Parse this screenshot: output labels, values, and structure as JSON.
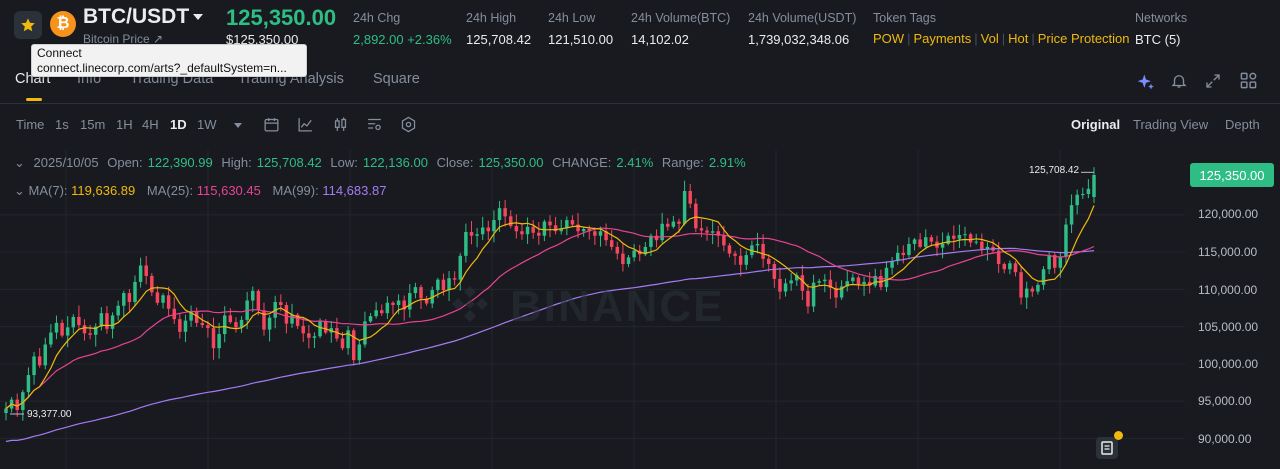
{
  "header": {
    "pair": "BTC/USDT",
    "subtitle": "Bitcoin Price",
    "last_price": "125,350.00",
    "last_price_usd": "$125,350.00",
    "stats": [
      {
        "label": "24h Chg",
        "value": "2,892.00 +2.36%"
      },
      {
        "label": "24h High",
        "value": "125,708.42"
      },
      {
        "label": "24h Low",
        "value": "121,510.00"
      },
      {
        "label": "24h Volume(BTC)",
        "value": "14,102.02"
      },
      {
        "label": "24h Volume(USDT)",
        "value": "1,739,032,348.06"
      }
    ],
    "token_tags_label": "Token Tags",
    "token_tags": [
      "POW",
      "Payments",
      "Vol",
      "Hot",
      "Price Protection"
    ],
    "networks_label": "Networks",
    "networks_value": "BTC (5)",
    "coin_symbol": "₿"
  },
  "tooltip": {
    "line1": "Connect",
    "line2": "connect.linecorp.com/arts?_defaultSystem=n..."
  },
  "tabs": [
    "Chart",
    "Info",
    "Trading Data",
    "Trading Analysis",
    "Square"
  ],
  "timeframes": [
    "Time",
    "1s",
    "15m",
    "1H",
    "4H",
    "1D",
    "1W"
  ],
  "active_timeframe": "1D",
  "views": [
    "Original",
    "Trading View",
    "Depth"
  ],
  "active_view": "Original",
  "ohlc": {
    "date": "2025/10/05",
    "open_label": "Open:",
    "open": "122,390.99",
    "high_label": "High:",
    "high": "125,708.42",
    "low_label": "Low:",
    "low": "122,136.00",
    "close_label": "Close:",
    "close": "125,350.00",
    "change_label": "CHANGE:",
    "change": "2.41%",
    "range_label": "Range:",
    "range": "2.91%"
  },
  "ma": {
    "ma7_label": "MA(7):",
    "ma7": "119,636.89",
    "ma25_label": "MA(25):",
    "ma25": "115,630.45",
    "ma99_label": "MA(99):",
    "ma99": "114,683.87"
  },
  "watermark": "BINANCE",
  "colors": {
    "up": "#2ebd85",
    "down": "#f6465d",
    "ma7": "#f0b90b",
    "ma25": "#e84393",
    "ma99": "#a57bf2",
    "accent": "#f0b90b"
  },
  "chart_data": {
    "type": "candlestick",
    "y_axis_ticks": [
      "125,350.00",
      "120,000.00",
      "115,000.00",
      "110,000.00",
      "105,000.00",
      "100,000.00",
      "95,000.00",
      "90,000.00"
    ],
    "ylim": [
      88500,
      128000
    ],
    "period_high_label": "125,708.42",
    "period_low_label": "93,377.00",
    "closes": [
      94000,
      95200,
      93800,
      96200,
      98500,
      101000,
      99800,
      102600,
      104200,
      105500,
      103800,
      104900,
      106300,
      105200,
      104100,
      103900,
      105000,
      106800,
      104700,
      106500,
      107800,
      109500,
      108300,
      111000,
      113200,
      111800,
      109600,
      108200,
      109200,
      107400,
      106000,
      104300,
      105800,
      107000,
      105500,
      105200,
      104800,
      102100,
      104000,
      106500,
      105600,
      104900,
      105900,
      108500,
      109800,
      107200,
      104600,
      106200,
      108300,
      107900,
      105400,
      106600,
      105100,
      104100,
      103500,
      103700,
      105700,
      104200,
      104800,
      103400,
      102100,
      104500,
      100500,
      102600,
      105700,
      106400,
      107200,
      106800,
      108200,
      107900,
      108500,
      107300,
      109500,
      110300,
      108800,
      108100,
      109900,
      111300,
      109900,
      111500,
      111300,
      114500,
      117700,
      117200,
      117400,
      118300,
      117800,
      119300,
      120900,
      119800,
      118500,
      117800,
      117400,
      118400,
      117600,
      117200,
      119100,
      118600,
      117800,
      118200,
      119300,
      118700,
      117800,
      118100,
      117800,
      117200,
      117800,
      116600,
      115700,
      114800,
      113400,
      114300,
      115200,
      114700,
      115700,
      117200,
      116600,
      118800,
      118400,
      119100,
      118800,
      123200,
      121500,
      118200,
      117900,
      117600,
      117800,
      117200,
      115900,
      114800,
      114500,
      113300,
      114600,
      115900,
      116100,
      114100,
      113400,
      111400,
      109700,
      110800,
      111200,
      111900,
      109800,
      107700,
      110900,
      111100,
      111300,
      110200,
      108900,
      110400,
      111100,
      111600,
      110700,
      111000,
      110500,
      111800,
      110300,
      112900,
      113800,
      114900,
      114600,
      116100,
      116700,
      115700,
      117000,
      116400,
      115600,
      116100,
      117200,
      116800,
      117300,
      117400,
      116300,
      116400,
      115400,
      115700,
      115200,
      113400,
      112700,
      113500,
      112300,
      108900,
      110100,
      109700,
      110600,
      112700,
      114600,
      112900,
      114400,
      118700,
      121300,
      122700,
      122800,
      123500,
      125350
    ]
  }
}
